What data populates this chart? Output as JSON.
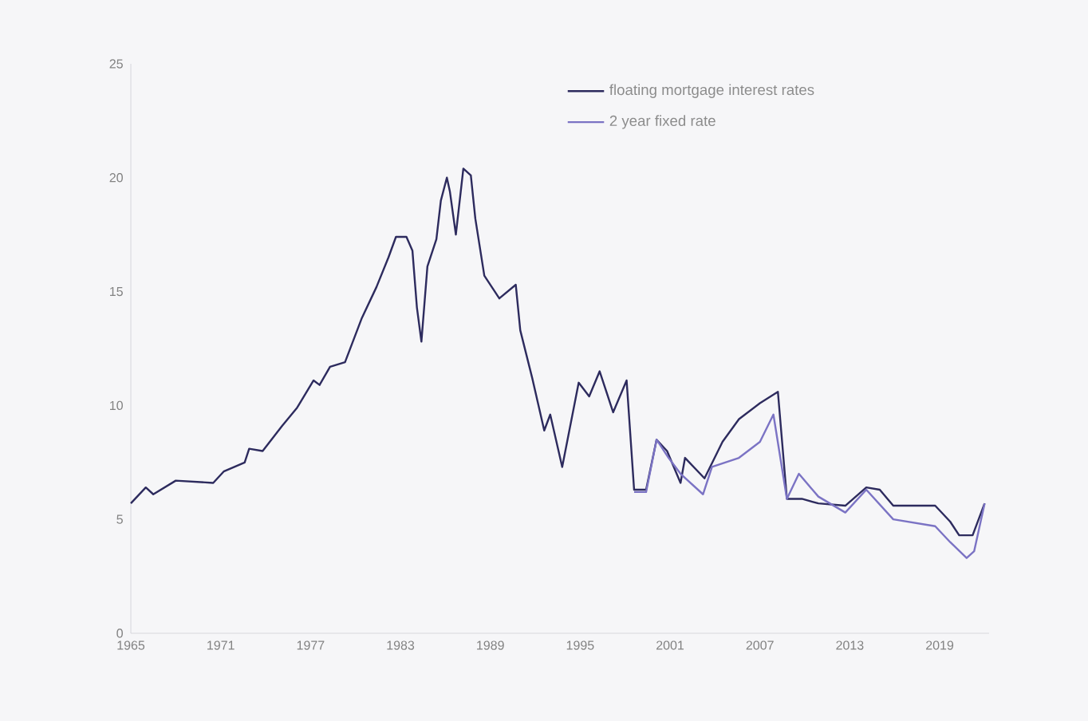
{
  "chart_data": {
    "type": "line",
    "x": [
      1965,
      1966.0,
      1966.5,
      1968.0,
      1970.5,
      1971.2,
      1972.6,
      1972.9,
      1973.8,
      1975.1,
      1976.1,
      1977.2,
      1977.6,
      1978.3,
      1979.3,
      1980.4,
      1981.4,
      1982.2,
      1982.7,
      1983.4,
      1983.8,
      1984.1,
      1984.4,
      1984.8,
      1985.4,
      1985.7,
      1986.1,
      1986.3,
      1986.7,
      1987.2,
      1987.7,
      1988.0,
      1988.6,
      1989.6,
      1990.7,
      1991.0,
      1991.8,
      1992.6,
      1993.0,
      1993.8,
      1994.9,
      1995.6,
      1996.3,
      1997.2,
      1998.1,
      1998.6,
      1999.4,
      2000.1,
      2000.8,
      2001.7,
      2002.0,
      2003.3,
      2004.5,
      2005.6,
      2007.0,
      2008.2,
      2008.8,
      2009.8,
      2010.9,
      2012.7,
      2014.1,
      2015.0,
      2015.9,
      2018.7,
      2019.7,
      2020.3,
      2021.2,
      2022.0
    ],
    "series": [
      {
        "name": "floating mortgage interest rates",
        "color": "#2d2b5e",
        "values": [
          5.7,
          6.4,
          6.1,
          6.7,
          6.6,
          7.1,
          7.5,
          8.1,
          8.0,
          9.1,
          9.9,
          11.1,
          10.9,
          11.7,
          11.9,
          13.8,
          15.2,
          16.5,
          17.4,
          17.4,
          16.8,
          14.3,
          12.8,
          16.1,
          17.3,
          19.0,
          20.0,
          19.4,
          17.5,
          20.4,
          20.1,
          18.2,
          15.7,
          14.7,
          15.3,
          13.3,
          11.2,
          8.9,
          9.6,
          7.3,
          11.0,
          10.4,
          11.5,
          9.7,
          11.1,
          6.3,
          6.3,
          8.5,
          8.0,
          6.6,
          7.7,
          6.8,
          8.4,
          9.4,
          10.1,
          10.6,
          5.9,
          5.9,
          5.7,
          5.6,
          6.4,
          6.3,
          5.6,
          5.6,
          4.9,
          4.3,
          4.3,
          5.7
        ]
      },
      {
        "name": "2 year fixed rate",
        "color": "#7b73c4",
        "x": [
          1998.6,
          1999.4,
          2000.1,
          2000.9,
          2001.7,
          2003.2,
          2003.8,
          2005.6,
          2007.0,
          2007.9,
          2008.8,
          2009.6,
          2010.9,
          2012.7,
          2014.1,
          2015.9,
          2018.7,
          2019.7,
          2020.8,
          2021.3,
          2022.0
        ],
        "values": [
          6.2,
          6.2,
          8.5,
          7.7,
          7.0,
          6.1,
          7.3,
          7.7,
          8.4,
          9.6,
          5.9,
          7.0,
          6.0,
          5.3,
          6.3,
          5.0,
          4.7,
          4.0,
          3.3,
          3.6,
          5.7
        ]
      }
    ],
    "xlim": [
      1965,
      2022.3
    ],
    "xticks": [
      1965,
      1971,
      1977,
      1983,
      1989,
      1995,
      2001,
      2007,
      2013,
      2019
    ],
    "ylim": [
      0,
      25
    ],
    "yticks": [
      0,
      5,
      10,
      15,
      20,
      25
    ],
    "grid": false,
    "legend": "top right"
  }
}
